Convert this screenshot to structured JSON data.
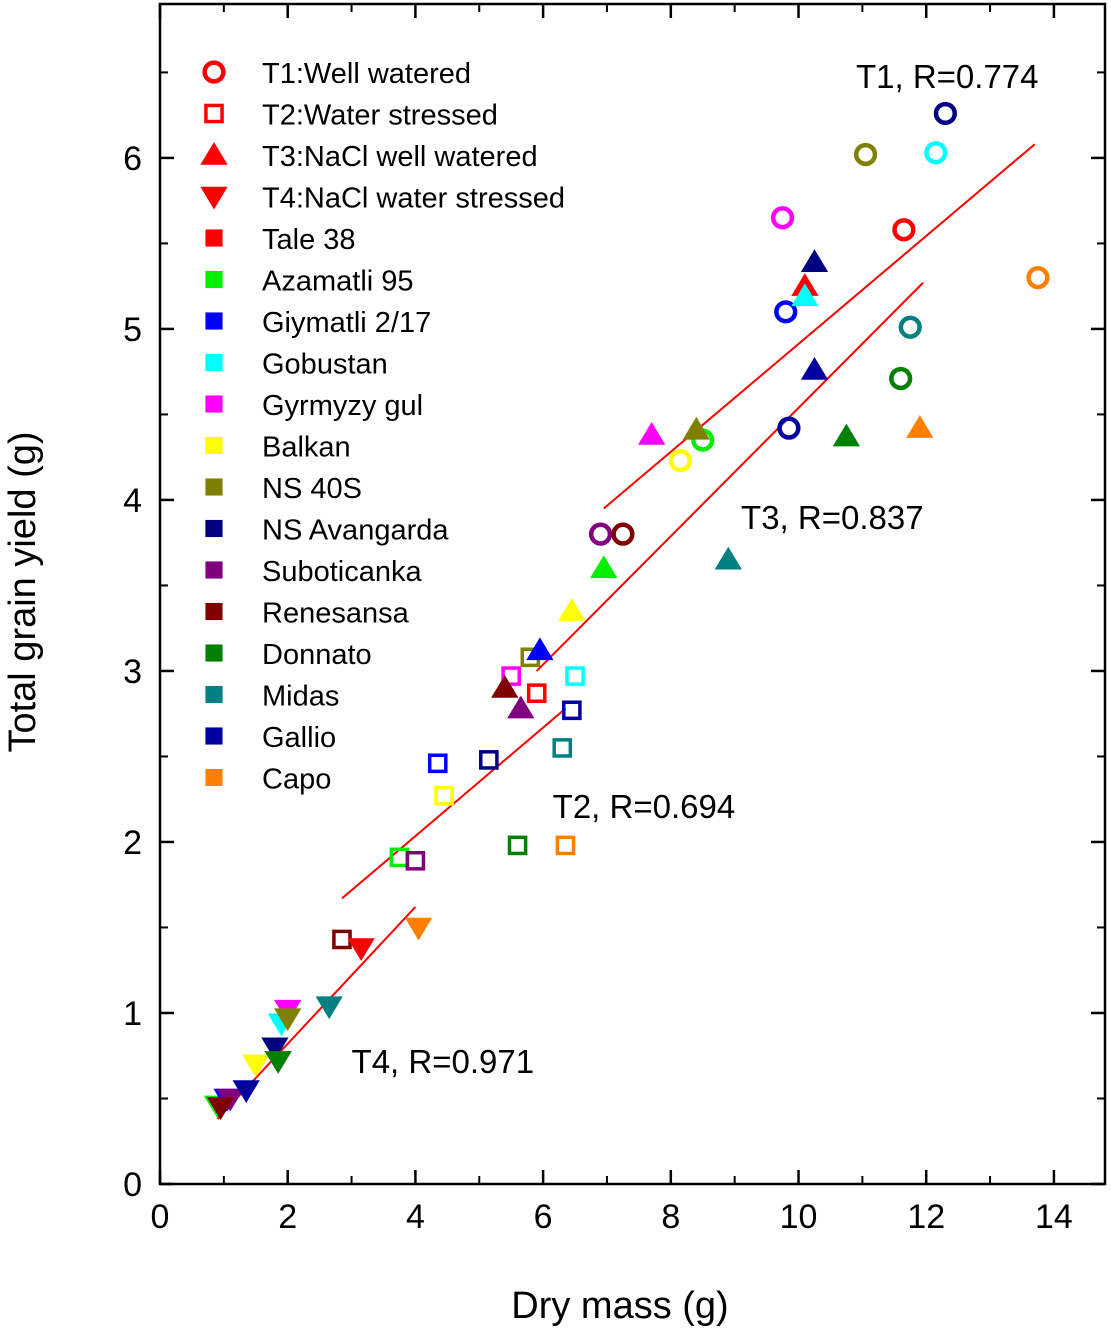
{
  "chart_data": {
    "type": "scatter",
    "xlabel": "Dry mass (g)",
    "ylabel": "Total grain yield (g)",
    "xlim": [
      0,
      14.8
    ],
    "ylim": [
      0,
      6.9
    ],
    "xticks": [
      0,
      2,
      4,
      6,
      8,
      10,
      12,
      14
    ],
    "yticks": [
      0,
      1,
      2,
      3,
      4,
      5,
      6
    ],
    "xtick_labels": [
      "0",
      "2",
      "4",
      "6",
      "8",
      "10",
      "12",
      "14"
    ],
    "ytick_labels": [
      "0",
      "1",
      "2",
      "3",
      "4",
      "5",
      "6"
    ],
    "treatments": [
      {
        "id": "T1",
        "label": "T1:Well watered",
        "marker": "circle-open"
      },
      {
        "id": "T2",
        "label": "T2:Water stressed",
        "marker": "square-open"
      },
      {
        "id": "T3",
        "label": "T3:NaCl well watered",
        "marker": "triangle-up"
      },
      {
        "id": "T4",
        "label": "T4:NaCl water stressed",
        "marker": "triangle-down"
      }
    ],
    "varieties": [
      {
        "name": "Tale 38",
        "color": "#ff0000"
      },
      {
        "name": "Azamatli 95",
        "color": "#00ee00"
      },
      {
        "name": "Giymatli 2/17",
        "color": "#0000ff"
      },
      {
        "name": "Gobustan",
        "color": "#00ffff"
      },
      {
        "name": "Gyrmyzy gul",
        "color": "#ff00ff"
      },
      {
        "name": "Balkan",
        "color": "#ffff00"
      },
      {
        "name": "NS 40S",
        "color": "#808000"
      },
      {
        "name": "NS Avangarda",
        "color": "#000080"
      },
      {
        "name": "Suboticanka",
        "color": "#800080"
      },
      {
        "name": "Renesansa",
        "color": "#800000"
      },
      {
        "name": "Donnato",
        "color": "#008000"
      },
      {
        "name": "Midas",
        "color": "#008080"
      },
      {
        "name": "Gallio",
        "color": "#0000a0"
      },
      {
        "name": "Capo",
        "color": "#ff8000"
      }
    ],
    "points": [
      {
        "t": "T1",
        "v": 0,
        "x": 11.65,
        "y": 5.58
      },
      {
        "t": "T1",
        "v": 1,
        "x": 8.5,
        "y": 4.35
      },
      {
        "t": "T1",
        "v": 2,
        "x": 9.8,
        "y": 5.1
      },
      {
        "t": "T1",
        "v": 3,
        "x": 12.15,
        "y": 6.03
      },
      {
        "t": "T1",
        "v": 4,
        "x": 9.75,
        "y": 5.65
      },
      {
        "t": "T1",
        "v": 5,
        "x": 8.15,
        "y": 4.23
      },
      {
        "t": "T1",
        "v": 6,
        "x": 11.05,
        "y": 6.02
      },
      {
        "t": "T1",
        "v": 7,
        "x": 12.3,
        "y": 6.26
      },
      {
        "t": "T1",
        "v": 8,
        "x": 6.9,
        "y": 3.8
      },
      {
        "t": "T1",
        "v": 9,
        "x": 7.25,
        "y": 3.8
      },
      {
        "t": "T1",
        "v": 10,
        "x": 11.6,
        "y": 4.71
      },
      {
        "t": "T1",
        "v": 11,
        "x": 11.75,
        "y": 5.01
      },
      {
        "t": "T1",
        "v": 12,
        "x": 9.85,
        "y": 4.42
      },
      {
        "t": "T1",
        "v": 13,
        "x": 13.75,
        "y": 5.3
      },
      {
        "t": "T2",
        "v": 0,
        "x": 5.9,
        "y": 2.87
      },
      {
        "t": "T2",
        "v": 1,
        "x": 3.75,
        "y": 1.91
      },
      {
        "t": "T2",
        "v": 2,
        "x": 4.35,
        "y": 2.46
      },
      {
        "t": "T2",
        "v": 3,
        "x": 6.5,
        "y": 2.97
      },
      {
        "t": "T2",
        "v": 4,
        "x": 5.5,
        "y": 2.97
      },
      {
        "t": "T2",
        "v": 5,
        "x": 4.45,
        "y": 2.27
      },
      {
        "t": "T2",
        "v": 6,
        "x": 5.8,
        "y": 3.08
      },
      {
        "t": "T2",
        "v": 7,
        "x": 5.15,
        "y": 2.48
      },
      {
        "t": "T2",
        "v": 8,
        "x": 4.0,
        "y": 1.89
      },
      {
        "t": "T2",
        "v": 9,
        "x": 2.85,
        "y": 1.43
      },
      {
        "t": "T2",
        "v": 10,
        "x": 5.6,
        "y": 1.98
      },
      {
        "t": "T2",
        "v": 11,
        "x": 6.3,
        "y": 2.55
      },
      {
        "t": "T2",
        "v": 12,
        "x": 6.45,
        "y": 2.77
      },
      {
        "t": "T2",
        "v": 13,
        "x": 6.35,
        "y": 1.98
      },
      {
        "t": "T3",
        "v": 0,
        "x": 10.1,
        "y": 5.25
      },
      {
        "t": "T3",
        "v": 1,
        "x": 6.95,
        "y": 3.6
      },
      {
        "t": "T3",
        "v": 2,
        "x": 5.95,
        "y": 3.12
      },
      {
        "t": "T3",
        "v": 3,
        "x": 10.1,
        "y": 5.19
      },
      {
        "t": "T3",
        "v": 4,
        "x": 7.7,
        "y": 4.38
      },
      {
        "t": "T3",
        "v": 5,
        "x": 6.45,
        "y": 3.35
      },
      {
        "t": "T3",
        "v": 6,
        "x": 8.4,
        "y": 4.41
      },
      {
        "t": "T3",
        "v": 7,
        "x": 10.25,
        "y": 5.39
      },
      {
        "t": "T3",
        "v": 8,
        "x": 5.65,
        "y": 2.78
      },
      {
        "t": "T3",
        "v": 9,
        "x": 5.4,
        "y": 2.9
      },
      {
        "t": "T3",
        "v": 10,
        "x": 10.75,
        "y": 4.37
      },
      {
        "t": "T3",
        "v": 11,
        "x": 8.9,
        "y": 3.65
      },
      {
        "t": "T3",
        "v": 12,
        "x": 10.25,
        "y": 4.76
      },
      {
        "t": "T3",
        "v": 13,
        "x": 11.9,
        "y": 4.42
      },
      {
        "t": "T4",
        "v": 0,
        "x": 3.15,
        "y": 1.38
      },
      {
        "t": "T4",
        "v": 1,
        "x": 0.9,
        "y": 0.46
      },
      {
        "t": "T4",
        "v": 2,
        "x": 1.05,
        "y": 0.5
      },
      {
        "t": "T4",
        "v": 3,
        "x": 1.9,
        "y": 0.94
      },
      {
        "t": "T4",
        "v": 4,
        "x": 2.0,
        "y": 1.02
      },
      {
        "t": "T4",
        "v": 5,
        "x": 1.5,
        "y": 0.7
      },
      {
        "t": "T4",
        "v": 6,
        "x": 2.0,
        "y": 0.97
      },
      {
        "t": "T4",
        "v": 7,
        "x": 1.8,
        "y": 0.8
      },
      {
        "t": "T4",
        "v": 8,
        "x": 1.1,
        "y": 0.5
      },
      {
        "t": "T4",
        "v": 9,
        "x": 0.95,
        "y": 0.45
      },
      {
        "t": "T4",
        "v": 10,
        "x": 1.85,
        "y": 0.72
      },
      {
        "t": "T4",
        "v": 11,
        "x": 2.65,
        "y": 1.04
      },
      {
        "t": "T4",
        "v": 12,
        "x": 1.35,
        "y": 0.55
      },
      {
        "t": "T4",
        "v": 13,
        "x": 4.05,
        "y": 1.5
      }
    ],
    "fit_lines": [
      {
        "id": "T1",
        "x": [
          6.95,
          13.7
        ],
        "y": [
          3.95,
          6.08
        ],
        "color": "#ff0000"
      },
      {
        "id": "T3",
        "x": [
          5.9,
          11.95
        ],
        "y": [
          3.0,
          5.27
        ],
        "color": "#ff0000"
      },
      {
        "id": "T2",
        "x": [
          2.85,
          6.35
        ],
        "y": [
          1.67,
          2.78
        ],
        "color": "#ff0000"
      },
      {
        "id": "T4",
        "x": [
          0.9,
          4.0
        ],
        "y": [
          0.38,
          1.62
        ],
        "color": "#ff0000"
      }
    ],
    "annotations": [
      {
        "text": "T1, R=0.774",
        "x": 10.9,
        "y": 6.41
      },
      {
        "text": "T3, R=0.837",
        "x": 9.1,
        "y": 3.83
      },
      {
        "text": "T2, R=0.694",
        "x": 6.15,
        "y": 2.14
      },
      {
        "text": "T4, R=0.971",
        "x": 3.0,
        "y": 0.65
      }
    ],
    "legend_position": "top-left"
  }
}
